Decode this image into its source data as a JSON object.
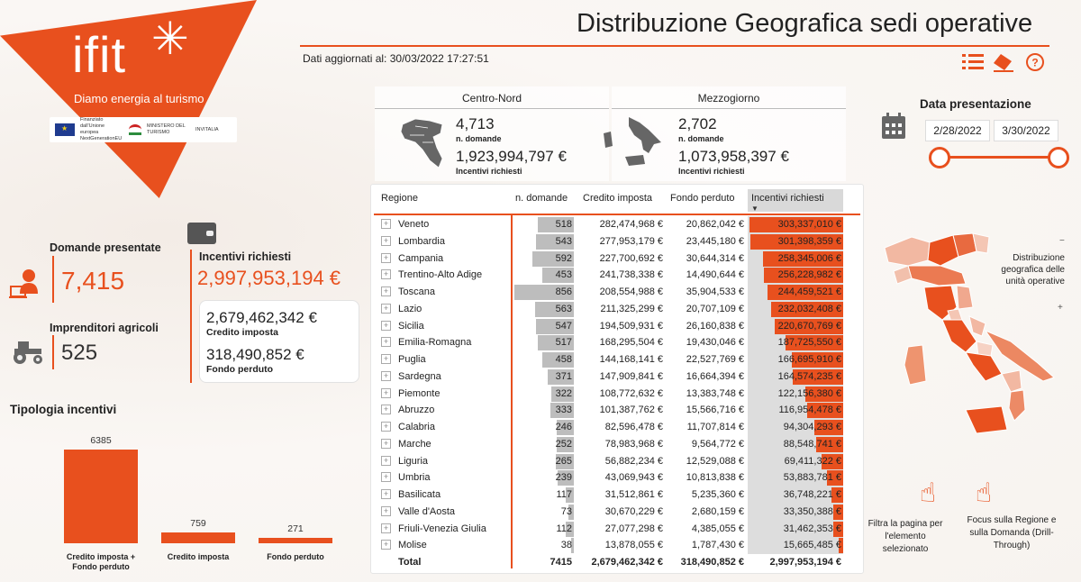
{
  "brand": {
    "logo": "ifit",
    "tagline": "Diamo energia al turismo",
    "partner_eu": "Finanziato dall'Unione europea NextGenerationEU",
    "partner_ministry": "MINISTERO DEL TURISMO",
    "partner_invitalia": "INVITALIA",
    "accent": "#e8501e"
  },
  "header": {
    "title": "Distribuzione Geografica sedi operative",
    "updated_label": "Dati aggiornati al:",
    "updated_value": "30/03/2022 17:27:51",
    "icons": [
      "list-icon",
      "eraser-icon",
      "help-icon"
    ]
  },
  "kpis": {
    "domande_label": "Domande presentate",
    "domande_value": "7,415",
    "imprenditori_label": "Imprenditori agricoli",
    "imprenditori_value": "525",
    "incentivi_label": "Incentivi richiesti",
    "incentivi_value": "2,997,953,194 €",
    "credito_value": "2,679,462,342 €",
    "credito_label": "Credito imposta",
    "fondo_value": "318,490,852 €",
    "fondo_label": "Fondo perduto"
  },
  "tipologia": {
    "title": "Tipologia incentivi",
    "bars": [
      {
        "label_line1": "Credito imposta +",
        "label_line2": "Fondo perduto",
        "value": 6385,
        "display": "6385"
      },
      {
        "label_line1": "Credito imposta",
        "label_line2": "",
        "value": 759,
        "display": "759"
      },
      {
        "label_line1": "Fondo perduto",
        "label_line2": "",
        "value": 271,
        "display": "271"
      }
    ]
  },
  "areas": {
    "centro_nord": {
      "title": "Centro-Nord",
      "domande": "4,713",
      "domande_label": "n. domande",
      "incentivi": "1,923,994,797 €",
      "incentivi_label": "Incentivi richiesti"
    },
    "mezzogiorno": {
      "title": "Mezzogiorno",
      "domande": "2,702",
      "domande_label": "n. domande",
      "incentivi": "1,073,958,397 €",
      "incentivi_label": "Incentivi richiesti"
    }
  },
  "table": {
    "headers": {
      "regione": "Regione",
      "domande": "n. domande",
      "credito": "Credito imposta",
      "fondo": "Fondo perduto",
      "incentivi": "Incentivi richiesti"
    },
    "max_domande": 856,
    "max_incentivi": 303337010,
    "rows": [
      {
        "regione": "Veneto",
        "domande": 518,
        "domande_txt": "518",
        "credito": "282,474,968 €",
        "fondo": "20,862,042 €",
        "incentivi": 303337010,
        "incentivi_txt": "303,337,010 €"
      },
      {
        "regione": "Lombardia",
        "domande": 543,
        "domande_txt": "543",
        "credito": "277,953,179 €",
        "fondo": "23,445,180 €",
        "incentivi": 301398359,
        "incentivi_txt": "301,398,359 €"
      },
      {
        "regione": "Campania",
        "domande": 592,
        "domande_txt": "592",
        "credito": "227,700,692 €",
        "fondo": "30,644,314 €",
        "incentivi": 258345006,
        "incentivi_txt": "258,345,006 €"
      },
      {
        "regione": "Trentino-Alto Adige",
        "domande": 453,
        "domande_txt": "453",
        "credito": "241,738,338 €",
        "fondo": "14,490,644 €",
        "incentivi": 256228982,
        "incentivi_txt": "256,228,982 €"
      },
      {
        "regione": "Toscana",
        "domande": 856,
        "domande_txt": "856",
        "credito": "208,554,988 €",
        "fondo": "35,904,533 €",
        "incentivi": 244459521,
        "incentivi_txt": "244,459,521 €"
      },
      {
        "regione": "Lazio",
        "domande": 563,
        "domande_txt": "563",
        "credito": "211,325,299 €",
        "fondo": "20,707,109 €",
        "incentivi": 232032408,
        "incentivi_txt": "232,032,408 €"
      },
      {
        "regione": "Sicilia",
        "domande": 547,
        "domande_txt": "547",
        "credito": "194,509,931 €",
        "fondo": "26,160,838 €",
        "incentivi": 220670769,
        "incentivi_txt": "220,670,769 €"
      },
      {
        "regione": "Emilia-Romagna",
        "domande": 517,
        "domande_txt": "517",
        "credito": "168,295,504 €",
        "fondo": "19,430,046 €",
        "incentivi": 187725550,
        "incentivi_txt": "187,725,550 €"
      },
      {
        "regione": "Puglia",
        "domande": 458,
        "domande_txt": "458",
        "credito": "144,168,141 €",
        "fondo": "22,527,769 €",
        "incentivi": 166695910,
        "incentivi_txt": "166,695,910 €"
      },
      {
        "regione": "Sardegna",
        "domande": 371,
        "domande_txt": "371",
        "credito": "147,909,841 €",
        "fondo": "16,664,394 €",
        "incentivi": 164574235,
        "incentivi_txt": "164,574,235 €"
      },
      {
        "regione": "Piemonte",
        "domande": 322,
        "domande_txt": "322",
        "credito": "108,772,632 €",
        "fondo": "13,383,748 €",
        "incentivi": 122156380,
        "incentivi_txt": "122,156,380 €"
      },
      {
        "regione": "Abruzzo",
        "domande": 333,
        "domande_txt": "333",
        "credito": "101,387,762 €",
        "fondo": "15,566,716 €",
        "incentivi": 116954478,
        "incentivi_txt": "116,954,478 €"
      },
      {
        "regione": "Calabria",
        "domande": 246,
        "domande_txt": "246",
        "credito": "82,596,478 €",
        "fondo": "11,707,814 €",
        "incentivi": 94304293,
        "incentivi_txt": "94,304,293 €"
      },
      {
        "regione": "Marche",
        "domande": 252,
        "domande_txt": "252",
        "credito": "78,983,968 €",
        "fondo": "9,564,772 €",
        "incentivi": 88548741,
        "incentivi_txt": "88,548,741 €"
      },
      {
        "regione": "Liguria",
        "domande": 265,
        "domande_txt": "265",
        "credito": "56,882,234 €",
        "fondo": "12,529,088 €",
        "incentivi": 69411322,
        "incentivi_txt": "69,411,322 €"
      },
      {
        "regione": "Umbria",
        "domande": 239,
        "domande_txt": "239",
        "credito": "43,069,943 €",
        "fondo": "10,813,838 €",
        "incentivi": 53883781,
        "incentivi_txt": "53,883,781 €"
      },
      {
        "regione": "Basilicata",
        "domande": 117,
        "domande_txt": "117",
        "credito": "31,512,861 €",
        "fondo": "5,235,360 €",
        "incentivi": 36748221,
        "incentivi_txt": "36,748,221 €"
      },
      {
        "regione": "Valle d'Aosta",
        "domande": 73,
        "domande_txt": "73",
        "credito": "30,670,229 €",
        "fondo": "2,680,159 €",
        "incentivi": 33350388,
        "incentivi_txt": "33,350,388 €"
      },
      {
        "regione": "Friuli-Venezia Giulia",
        "domande": 112,
        "domande_txt": "112",
        "credito": "27,077,298 €",
        "fondo": "4,385,055 €",
        "incentivi": 31462353,
        "incentivi_txt": "31,462,353 €"
      },
      {
        "regione": "Molise",
        "domande": 38,
        "domande_txt": "38",
        "credito": "13,878,055 €",
        "fondo": "1,787,430 €",
        "incentivi": 15665485,
        "incentivi_txt": "15,665,485 €"
      }
    ],
    "total": {
      "regione": "Total",
      "domande": "7415",
      "credito": "2,679,462,342 €",
      "fondo": "318,490,852 €",
      "incentivi": "2,997,953,194 €"
    }
  },
  "date_filter": {
    "label": "Data presentazione",
    "from": "2/28/2022",
    "to": "3/30/2022",
    "icon": "calendar-icon"
  },
  "map": {
    "label": "Distribuzione geografica delle unità operative",
    "minus": "−",
    "plus": "+"
  },
  "hints": {
    "filter": "Filtra la pagina per l'elemento selezionato",
    "drill": "Focus sulla Regione e sulla Domanda (Drill-Through)"
  }
}
